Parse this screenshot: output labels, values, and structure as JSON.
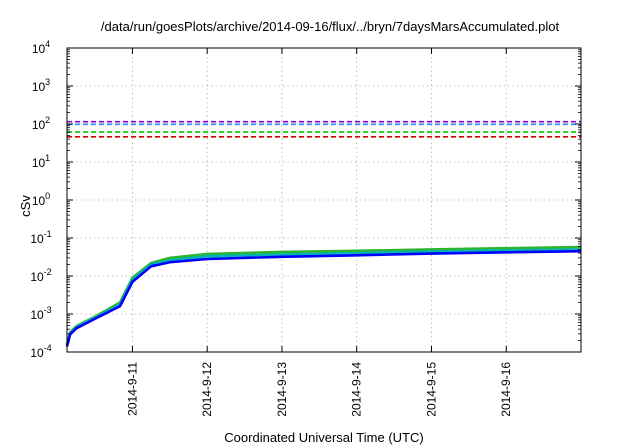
{
  "chart_data": {
    "type": "line",
    "title": "/data/run/goesPlots/archive/2014-09-16/flux/../bryn/7daysMarsAccumulated.plot",
    "xlabel": "Coordinated Universal Time (UTC)",
    "ylabel": "cSv",
    "yscale": "log",
    "ylim": [
      0.0001,
      10000
    ],
    "xlim": [
      "2014-09-10 03:00",
      "2014-09-17 00:00"
    ],
    "grid": true,
    "legend": "none",
    "y_ticks": [
      {
        "value": 0.0001,
        "base": "10",
        "exp": "-4"
      },
      {
        "value": 0.001,
        "base": "10",
        "exp": "-3"
      },
      {
        "value": 0.01,
        "base": "10",
        "exp": "-2"
      },
      {
        "value": 0.1,
        "base": "10",
        "exp": "-1"
      },
      {
        "value": 1,
        "base": "10",
        "exp": "0"
      },
      {
        "value": 10,
        "base": "10",
        "exp": "1"
      },
      {
        "value": 100,
        "base": "10",
        "exp": "2"
      },
      {
        "value": 1000,
        "base": "10",
        "exp": "3"
      },
      {
        "value": 10000,
        "base": "10",
        "exp": "4"
      }
    ],
    "x_ticks": [
      "2014-9-11",
      "2014-9-12",
      "2014-9-13",
      "2014-9-14",
      "2014-9-15",
      "2014-9-16"
    ],
    "x_tick_dates": [
      "2014-09-11 00:00",
      "2014-09-12 00:00",
      "2014-09-13 00:00",
      "2014-09-14 00:00",
      "2014-09-15 00:00",
      "2014-09-16 00:00"
    ],
    "series": [
      {
        "color": "#2db52d",
        "style": "solid",
        "x": [
          "2014-09-10 03:00",
          "2014-09-10 04:00",
          "2014-09-10 06:00",
          "2014-09-10 12:00",
          "2014-09-10 16:00",
          "2014-09-10 20:00",
          "2014-09-11 00:00",
          "2014-09-11 06:00",
          "2014-09-11 12:00",
          "2014-09-12 00:00",
          "2014-09-13 00:00",
          "2014-09-14 00:00",
          "2014-09-15 00:00",
          "2014-09-16 00:00",
          "2014-09-17 00:00"
        ],
        "y": [
          0.00016,
          0.00033,
          0.00048,
          0.00085,
          0.0013,
          0.002,
          0.009,
          0.022,
          0.03,
          0.038,
          0.043,
          0.046,
          0.05,
          0.054,
          0.058
        ]
      },
      {
        "color": "#00b4b4",
        "style": "solid",
        "x": [
          "2014-09-10 03:00",
          "2014-09-10 04:00",
          "2014-09-10 06:00",
          "2014-09-10 12:00",
          "2014-09-10 16:00",
          "2014-09-10 20:00",
          "2014-09-11 00:00",
          "2014-09-11 06:00",
          "2014-09-11 12:00",
          "2014-09-12 00:00",
          "2014-09-13 00:00",
          "2014-09-14 00:00",
          "2014-09-15 00:00",
          "2014-09-16 00:00",
          "2014-09-17 00:00"
        ],
        "y": [
          0.00015,
          0.00031,
          0.00045,
          0.0008,
          0.0012,
          0.0018,
          0.008,
          0.02,
          0.026,
          0.033,
          0.037,
          0.04,
          0.044,
          0.047,
          0.05
        ]
      },
      {
        "color": "#0000ff",
        "style": "solid",
        "x": [
          "2014-09-10 03:00",
          "2014-09-10 04:00",
          "2014-09-10 06:00",
          "2014-09-10 12:00",
          "2014-09-10 16:00",
          "2014-09-10 20:00",
          "2014-09-11 00:00",
          "2014-09-11 06:00",
          "2014-09-11 12:00",
          "2014-09-12 00:00",
          "2014-09-13 00:00",
          "2014-09-14 00:00",
          "2014-09-15 00:00",
          "2014-09-16 00:00",
          "2014-09-17 00:00"
        ],
        "y": [
          0.00014,
          0.00029,
          0.00042,
          0.00075,
          0.0011,
          0.0016,
          0.007,
          0.018,
          0.023,
          0.028,
          0.032,
          0.035,
          0.039,
          0.042,
          0.045
        ]
      },
      {
        "color": "#9400d3",
        "style": "dashed",
        "x": [
          "2014-09-10 03:00",
          "2014-09-17 00:00"
        ],
        "y": [
          115,
          115
        ]
      },
      {
        "color": "#1e90ff",
        "style": "dashed",
        "x": [
          "2014-09-10 03:00",
          "2014-09-17 00:00"
        ],
        "y": [
          98,
          98
        ]
      },
      {
        "color": "#00c000",
        "style": "dashed",
        "x": [
          "2014-09-10 03:00",
          "2014-09-17 00:00"
        ],
        "y": [
          62,
          62
        ]
      },
      {
        "color": "#e00000",
        "style": "dashed",
        "x": [
          "2014-09-10 03:00",
          "2014-09-17 00:00"
        ],
        "y": [
          46,
          46
        ]
      }
    ]
  }
}
